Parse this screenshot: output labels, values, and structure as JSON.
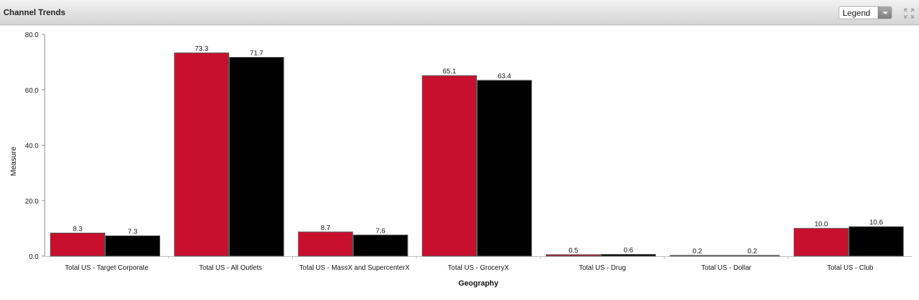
{
  "header": {
    "title": "Channel Trends",
    "legend_select_value": "Legend"
  },
  "chart_data": {
    "type": "bar",
    "title": "",
    "xlabel": "Geography",
    "ylabel": "Measure",
    "ylim": [
      0,
      80
    ],
    "yticks": [
      "0.0",
      "20.0",
      "40.0",
      "60.0",
      "80.0"
    ],
    "categories": [
      "Total US - Target Corporate",
      "Total US - All Outlets",
      "Total US - MassX and SupercenterX",
      "Total US - GroceryX",
      "Total US - Drug",
      "Total US - Dollar",
      "Total US - Club"
    ],
    "series": [
      {
        "values": [
          8.3,
          73.3,
          8.7,
          65.1,
          0.5,
          0.2,
          10.0
        ],
        "labels": [
          "8.3",
          "73.3",
          "8.7",
          "65.1",
          "0.5",
          "0.2",
          "10.0"
        ],
        "color": "#c8102e"
      },
      {
        "values": [
          7.3,
          71.7,
          7.6,
          63.4,
          0.6,
          0.2,
          10.6
        ],
        "labels": [
          "7.3",
          "71.7",
          "7.6",
          "63.4",
          "0.6",
          "0.2",
          "10.6"
        ],
        "color": "#000000"
      }
    ],
    "grid": false,
    "legend": "hidden"
  }
}
